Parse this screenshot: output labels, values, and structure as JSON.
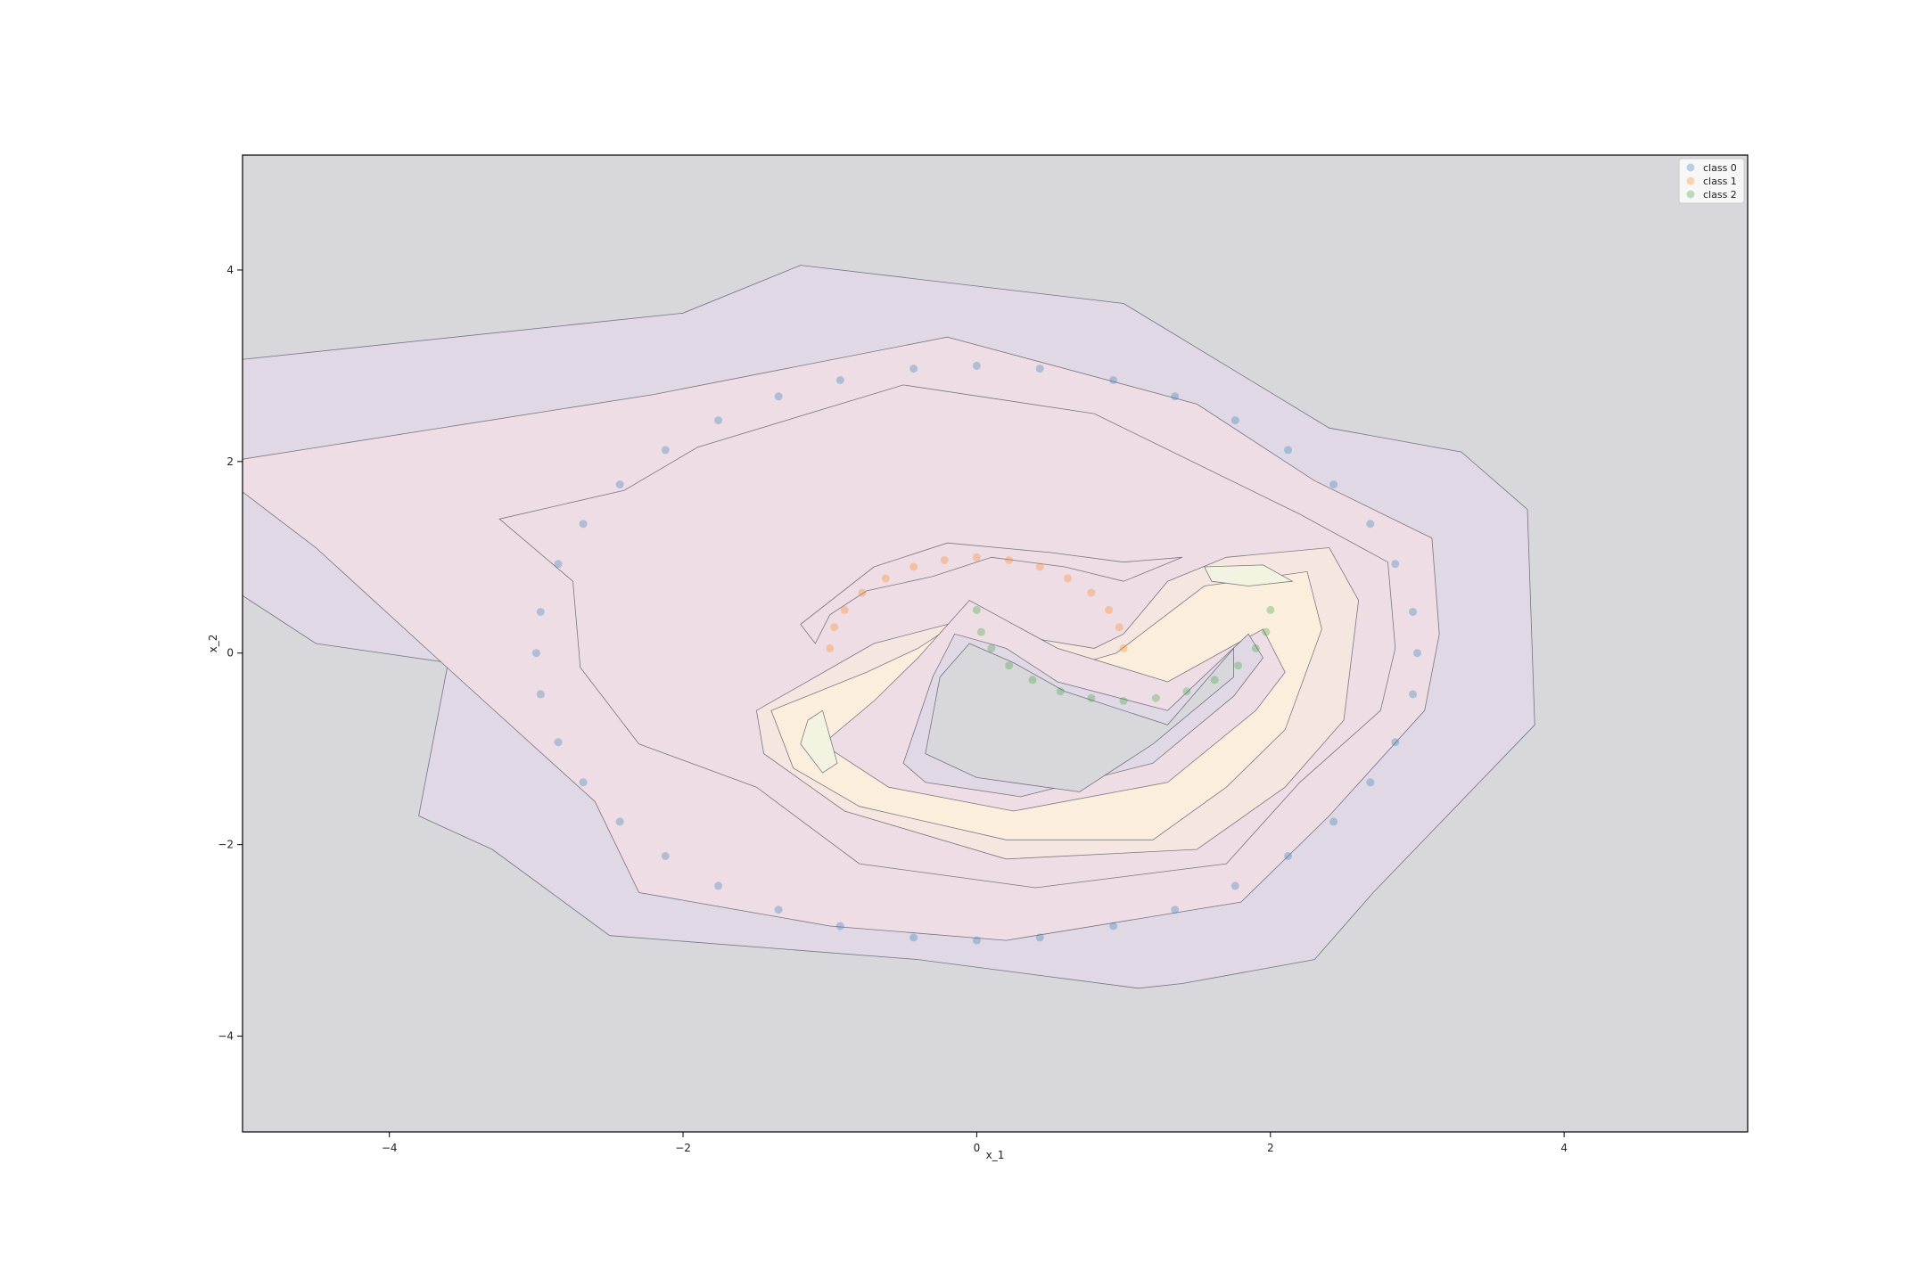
{
  "chart_data": {
    "type": "scatter",
    "title": "",
    "xlabel": "x_1",
    "ylabel": "x_2",
    "xlim": [
      -5.0,
      5.25
    ],
    "ylim": [
      -5.0,
      5.2
    ],
    "x_ticks": [
      -4,
      -2,
      0,
      2,
      4
    ],
    "y_ticks": [
      -4,
      -2,
      0,
      2,
      4
    ],
    "x_tick_labels": [
      "−4",
      "−2",
      "0",
      "2",
      "4"
    ],
    "y_tick_labels": [
      "−4",
      "−2",
      "0",
      "2",
      "4"
    ],
    "grid": false,
    "legend_position": "top-right",
    "background_color": "#d8d7dc",
    "series": [
      {
        "name": "class 0",
        "color": "#1f77b4",
        "shape": "circle of radius 3 centered at (0, 0)",
        "points": [
          [
            3.0,
            0.0
          ],
          [
            2.97,
            0.43
          ],
          [
            2.85,
            0.93
          ],
          [
            2.68,
            1.35
          ],
          [
            2.43,
            1.76
          ],
          [
            2.12,
            2.12
          ],
          [
            1.76,
            2.43
          ],
          [
            1.35,
            2.68
          ],
          [
            0.93,
            2.85
          ],
          [
            0.43,
            2.97
          ],
          [
            0.0,
            3.0
          ],
          [
            -0.43,
            2.97
          ],
          [
            -0.93,
            2.85
          ],
          [
            -1.35,
            2.68
          ],
          [
            -1.76,
            2.43
          ],
          [
            -2.12,
            2.12
          ],
          [
            -2.43,
            1.76
          ],
          [
            -2.68,
            1.35
          ],
          [
            -2.85,
            0.93
          ],
          [
            -2.97,
            0.43
          ],
          [
            -3.0,
            0.0
          ],
          [
            -2.97,
            -0.43
          ],
          [
            -2.85,
            -0.93
          ],
          [
            -2.68,
            -1.35
          ],
          [
            -2.43,
            -1.76
          ],
          [
            -2.12,
            -2.12
          ],
          [
            -1.76,
            -2.43
          ],
          [
            -1.35,
            -2.68
          ],
          [
            -0.93,
            -2.85
          ],
          [
            -0.43,
            -2.97
          ],
          [
            0.0,
            -3.0
          ],
          [
            0.43,
            -2.97
          ],
          [
            0.93,
            -2.85
          ],
          [
            1.35,
            -2.68
          ],
          [
            1.76,
            -2.43
          ],
          [
            2.12,
            -2.12
          ],
          [
            2.43,
            -1.76
          ],
          [
            2.68,
            -1.35
          ],
          [
            2.85,
            -0.93
          ],
          [
            2.97,
            -0.43
          ]
        ]
      },
      {
        "name": "class 1",
        "color": "#ff7f0e",
        "shape": "upper arc of radius 1 centered at (0, 0)",
        "points": [
          [
            1.0,
            0.05
          ],
          [
            0.97,
            0.27
          ],
          [
            0.9,
            0.45
          ],
          [
            0.78,
            0.63
          ],
          [
            0.62,
            0.78
          ],
          [
            0.43,
            0.9
          ],
          [
            0.22,
            0.97
          ],
          [
            0.0,
            1.0
          ],
          [
            -0.22,
            0.97
          ],
          [
            -0.43,
            0.9
          ],
          [
            -0.62,
            0.78
          ],
          [
            -0.78,
            0.63
          ],
          [
            -0.9,
            0.45
          ],
          [
            -0.97,
            0.27
          ],
          [
            -1.0,
            0.05
          ]
        ]
      },
      {
        "name": "class 2",
        "color": "#2ca02c",
        "shape": "lower arc of radius 1 centered at (1, 0.5)",
        "points": [
          [
            0.0,
            0.45
          ],
          [
            0.03,
            0.22
          ],
          [
            0.1,
            0.05
          ],
          [
            0.22,
            -0.13
          ],
          [
            0.38,
            -0.28
          ],
          [
            0.57,
            -0.4
          ],
          [
            0.78,
            -0.47
          ],
          [
            1.0,
            -0.5
          ],
          [
            1.22,
            -0.47
          ],
          [
            1.43,
            -0.4
          ],
          [
            1.62,
            -0.28
          ],
          [
            1.78,
            -0.13
          ],
          [
            1.9,
            0.05
          ],
          [
            1.97,
            0.22
          ],
          [
            2.0,
            0.45
          ]
        ]
      }
    ],
    "contour_fill_colors": [
      "#e0d8e4",
      "#eedde4",
      "#f5e6e0",
      "#fbeedd",
      "#f3f3e2"
    ]
  }
}
